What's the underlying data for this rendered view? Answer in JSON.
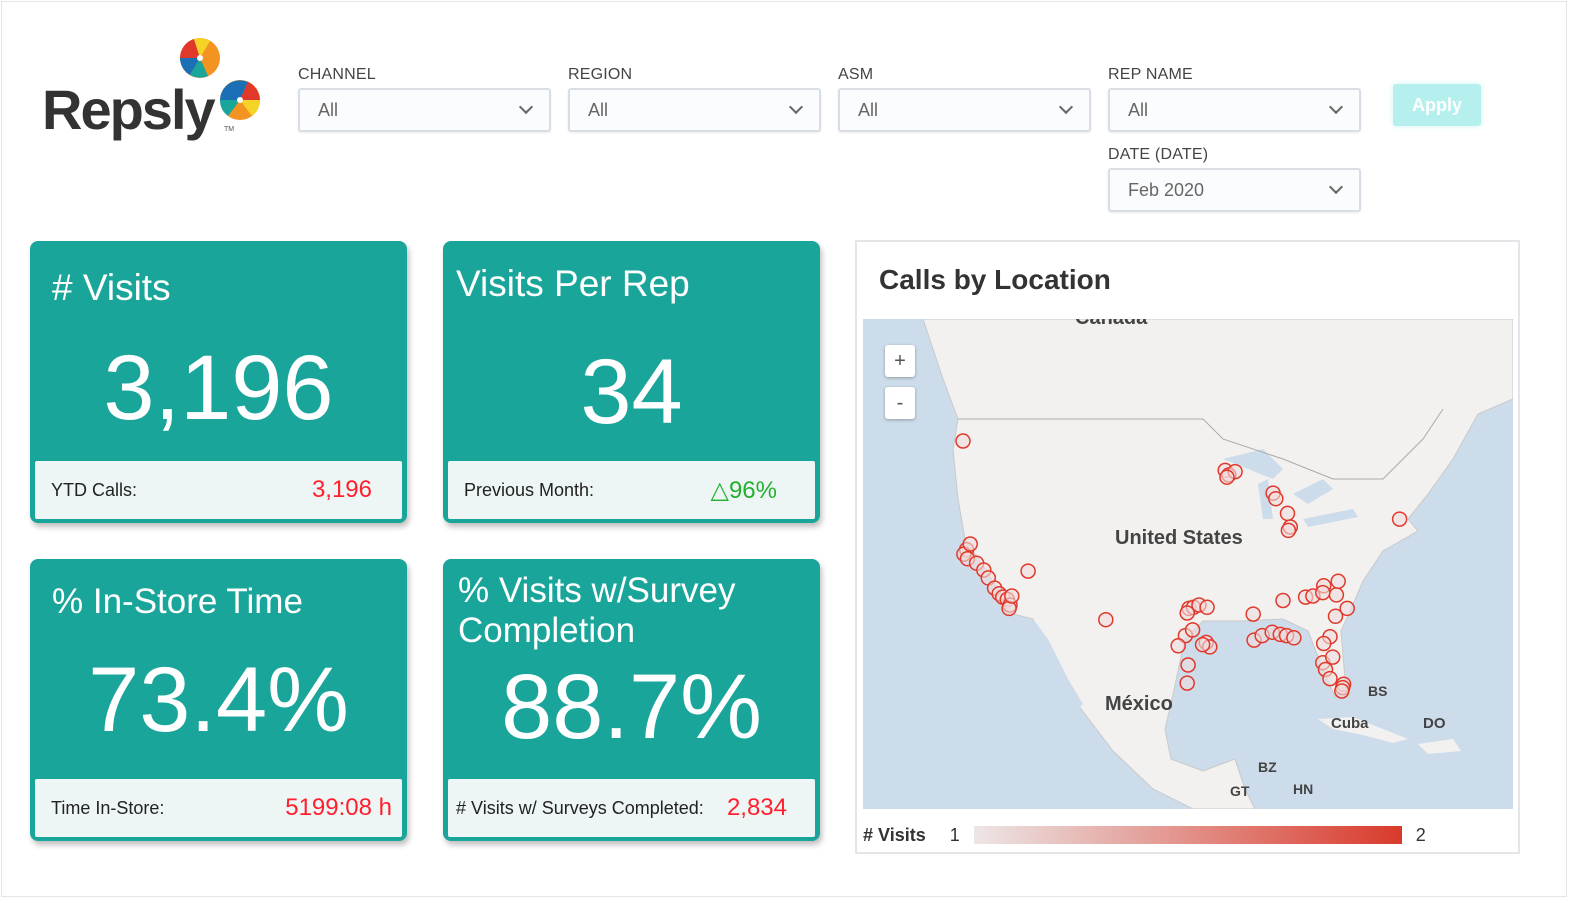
{
  "brand": {
    "name": "Repsly",
    "tm": "TM"
  },
  "filters": [
    {
      "label": "CHANNEL",
      "value": "All"
    },
    {
      "label": "REGION",
      "value": "All"
    },
    {
      "label": "ASM",
      "value": "All"
    },
    {
      "label": "REP NAME",
      "value": "All"
    },
    {
      "label": "DATE (DATE)",
      "value": "Feb 2020"
    }
  ],
  "apply_label": "Apply",
  "colors": {
    "card": "#1aa59b",
    "negative": "#ff1f2d",
    "positive": "#22b02e",
    "marker": "#e0392b"
  },
  "cards": [
    {
      "title": "# Visits",
      "value": "3,196",
      "foot_label": "YTD Calls:",
      "foot_value": "3,196"
    },
    {
      "title": "Visits Per Rep",
      "value": "34",
      "foot_label": "Previous Month:",
      "foot_value": "△96%"
    },
    {
      "title": "% In-Store Time",
      "value": "73.4%",
      "foot_label": "Time In-Store:",
      "foot_value": "5199:08 h"
    },
    {
      "title": "% Visits w/Survey Completion",
      "value": "88.7%",
      "foot_label": "# Visits w/ Surveys Completed:",
      "foot_value": "2,834"
    }
  ],
  "map": {
    "title": "Calls by Location",
    "zoom_in": "+",
    "zoom_out": "-",
    "labels": {
      "canada": "Canada",
      "us": "United States",
      "mexico": "México",
      "bs": "BS",
      "cuba": "Cuba",
      "do": "DO",
      "bz": "BZ",
      "gt": "GT",
      "hn": "HN"
    },
    "legend": {
      "label": "# Visits",
      "min": "1",
      "max": "2"
    },
    "markers": [
      [
        -122.3,
        47.6
      ],
      [
        -121.9,
        38.0
      ],
      [
        -122.2,
        37.6
      ],
      [
        -121.8,
        37.2
      ],
      [
        -121.5,
        38.5
      ],
      [
        -120.8,
        36.8
      ],
      [
        -120,
        36.2
      ],
      [
        -119.5,
        35.5
      ],
      [
        -118.8,
        34.6
      ],
      [
        -118.3,
        34.1
      ],
      [
        -117.9,
        33.8
      ],
      [
        -117.4,
        33.6
      ],
      [
        -117.1,
        33.1
      ],
      [
        -117.2,
        32.8
      ],
      [
        -116.9,
        33.9
      ],
      [
        -115.1,
        36.1
      ],
      [
        -93.3,
        45.0
      ],
      [
        -92.9,
        44.6
      ],
      [
        -92.2,
        44.9
      ],
      [
        -93.1,
        44.4
      ],
      [
        -88.0,
        43.0
      ],
      [
        -87.7,
        42.5
      ],
      [
        -86.4,
        41.2
      ],
      [
        -86.1,
        40.0
      ],
      [
        -86.3,
        39.7
      ],
      [
        -106.5,
        31.8
      ],
      [
        -97.3,
        32.8
      ],
      [
        -96.8,
        32.9
      ],
      [
        -96.2,
        33.1
      ],
      [
        -97.5,
        32.4
      ],
      [
        -95.3,
        32.9
      ],
      [
        -97.7,
        30.4
      ],
      [
        -98.5,
        29.5
      ],
      [
        -96.9,
        30.9
      ],
      [
        -95.4,
        29.8
      ],
      [
        -95.0,
        29.4
      ],
      [
        -95.8,
        29.6
      ],
      [
        -97.4,
        27.8
      ],
      [
        -97.5,
        26.2
      ],
      [
        -90.1,
        30.0
      ],
      [
        -89.2,
        30.4
      ],
      [
        -88.1,
        30.7
      ],
      [
        -87.2,
        30.5
      ],
      [
        -86.5,
        30.4
      ],
      [
        -85.7,
        30.2
      ],
      [
        -90.2,
        32.3
      ],
      [
        -86.9,
        33.5
      ],
      [
        -84.4,
        33.8
      ],
      [
        -83.6,
        33.9
      ],
      [
        -82.4,
        34.8
      ],
      [
        -81.0,
        34.0
      ],
      [
        -80.8,
        35.2
      ],
      [
        -79.8,
        32.8
      ],
      [
        -81.1,
        32.1
      ],
      [
        -82.5,
        34.2
      ],
      [
        -81.7,
        30.3
      ],
      [
        -82.4,
        29.7
      ],
      [
        -82.5,
        28.0
      ],
      [
        -82.2,
        27.4
      ],
      [
        -81.4,
        28.5
      ],
      [
        -81.7,
        26.6
      ],
      [
        -80.2,
        26.1
      ],
      [
        -80.3,
        25.8
      ],
      [
        -80.4,
        25.5
      ],
      [
        -74.0,
        40.7
      ]
    ]
  }
}
